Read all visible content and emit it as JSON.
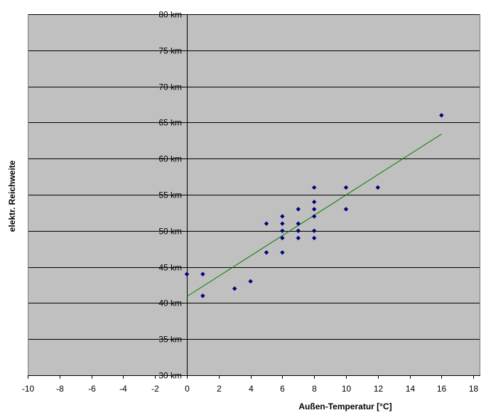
{
  "chart_data": {
    "type": "scatter",
    "xlabel": "Außen-Temperatur [°C]",
    "ylabel": "elektr. Reichweite",
    "xlim": [
      -10,
      18
    ],
    "ylim": [
      30,
      80
    ],
    "x_ticks": [
      -10,
      -8,
      -6,
      -4,
      -2,
      0,
      2,
      4,
      6,
      8,
      10,
      12,
      14,
      16,
      18
    ],
    "x_tick_labels": [
      "-10",
      "-8",
      "-6",
      "-4",
      "-2",
      "0",
      "2",
      "4",
      "6",
      "8",
      "10",
      "12",
      "14",
      "16",
      "18"
    ],
    "y_ticks": [
      30,
      35,
      40,
      45,
      50,
      55,
      60,
      65,
      70,
      75,
      80
    ],
    "y_tick_labels": [
      "30 km",
      "35 km",
      "40 km",
      "45 km",
      "50 km",
      "55 km",
      "60 km",
      "65 km",
      "70 km",
      "75 km",
      "80 km"
    ],
    "grid": "horizontal",
    "legend": "none",
    "colors": {
      "plot_background": "#c0c0c0",
      "gridline": "#000000",
      "marker": "#000080",
      "trendline": "#008000"
    },
    "points": [
      {
        "x": 0,
        "y": 44
      },
      {
        "x": 1,
        "y": 44
      },
      {
        "x": 1,
        "y": 41
      },
      {
        "x": 3,
        "y": 42
      },
      {
        "x": 4,
        "y": 43
      },
      {
        "x": 5,
        "y": 51
      },
      {
        "x": 5,
        "y": 47
      },
      {
        "x": 6,
        "y": 52
      },
      {
        "x": 6,
        "y": 51
      },
      {
        "x": 6,
        "y": 50
      },
      {
        "x": 6,
        "y": 49
      },
      {
        "x": 6,
        "y": 47
      },
      {
        "x": 7,
        "y": 53
      },
      {
        "x": 7,
        "y": 51
      },
      {
        "x": 7,
        "y": 50
      },
      {
        "x": 7,
        "y": 49
      },
      {
        "x": 8,
        "y": 56
      },
      {
        "x": 8,
        "y": 54
      },
      {
        "x": 8,
        "y": 53
      },
      {
        "x": 8,
        "y": 52
      },
      {
        "x": 8,
        "y": 50
      },
      {
        "x": 8,
        "y": 49
      },
      {
        "x": 10,
        "y": 56
      },
      {
        "x": 10,
        "y": 53
      },
      {
        "x": 12,
        "y": 56
      },
      {
        "x": 16,
        "y": 66
      }
    ],
    "trendline": {
      "type": "linear",
      "from": {
        "x": 0,
        "y": 40.9
      },
      "to": {
        "x": 16,
        "y": 63.4
      }
    }
  }
}
